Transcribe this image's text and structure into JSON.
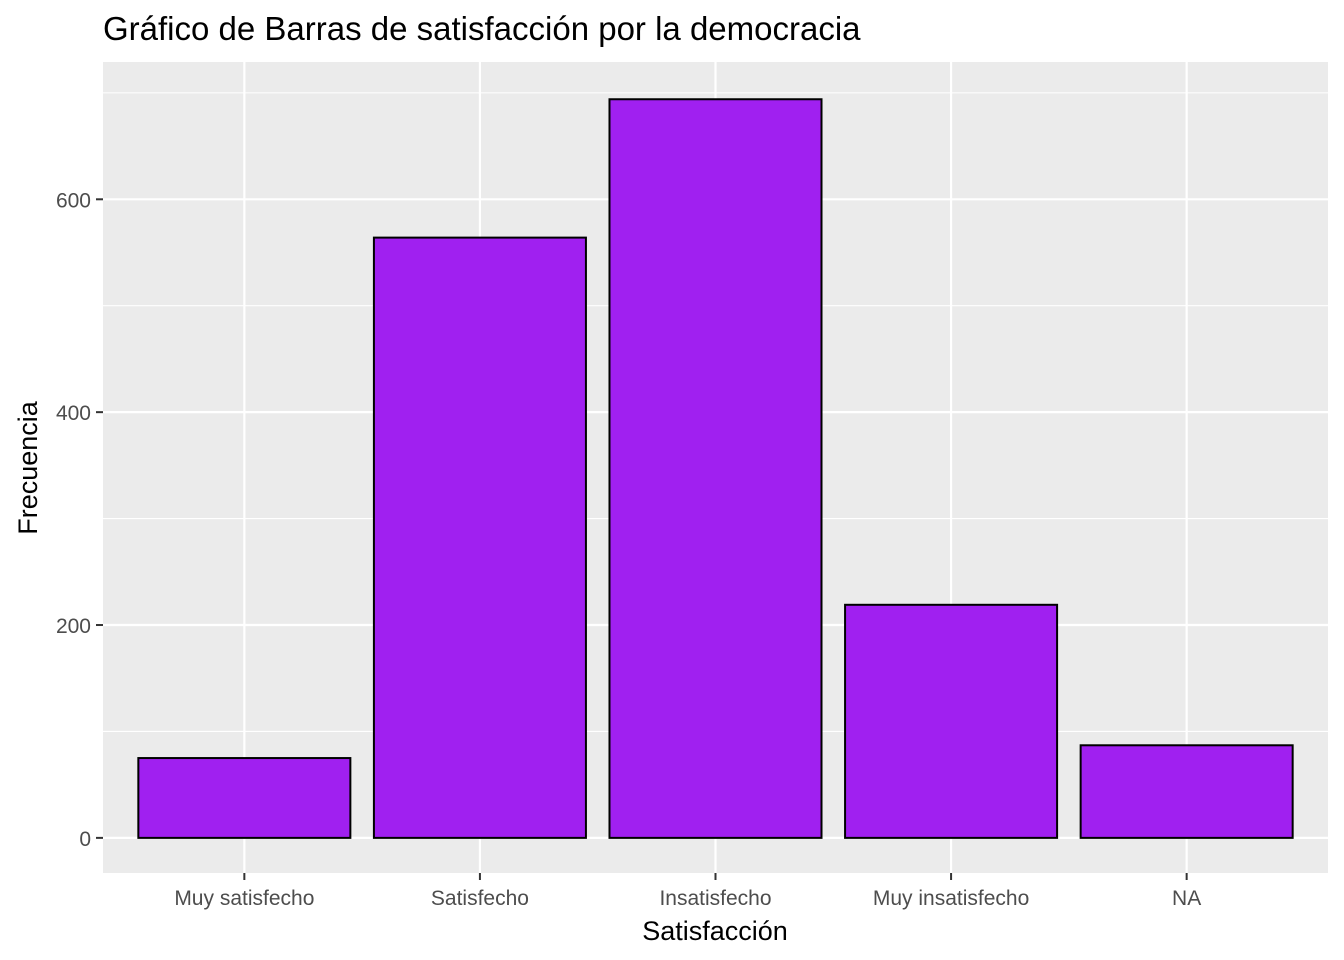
{
  "chart_data": {
    "type": "bar",
    "title": "Gráfico de Barras de satisfacción por la democracia",
    "xlabel": "Satisfacción",
    "ylabel": "Frecuencia",
    "categories": [
      "Muy satisfecho",
      "Satisfecho",
      "Insatisfecho",
      "Muy insatisfecho",
      "NA"
    ],
    "values": [
      75,
      564,
      694,
      219,
      87
    ],
    "ylim": [
      -33,
      729
    ],
    "yticks": [
      0,
      200,
      400,
      600
    ],
    "ytick_labels": [
      "0",
      "200",
      "400",
      "600"
    ],
    "grid": true,
    "bar_fill": "#A020F0",
    "bar_stroke": "#000000",
    "panel_background": "#EBEBEB",
    "grid_color": "#FFFFFF"
  }
}
